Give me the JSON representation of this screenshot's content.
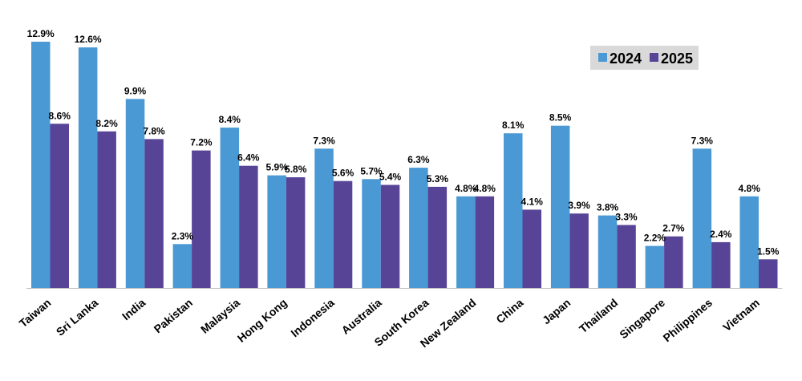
{
  "chart_data": {
    "type": "bar",
    "title": "",
    "xlabel": "",
    "ylabel": "",
    "categories": [
      "Taiwan",
      "Sri Lanka",
      "India",
      "Pakistan",
      "Malaysia",
      "Hong Kong",
      "Indonesia",
      "Australia",
      "South Korea",
      "New Zealand",
      "China",
      "Japan",
      "Thailand",
      "Singapore",
      "Philippines",
      "Vietnam"
    ],
    "series": [
      {
        "name": "2024",
        "color": "#4a98d4",
        "values": [
          12.9,
          12.6,
          9.9,
          2.3,
          8.4,
          5.9,
          7.3,
          5.7,
          6.3,
          4.8,
          8.1,
          8.5,
          3.8,
          2.2,
          7.3,
          4.8
        ],
        "labels": [
          "12.9%",
          "12.6%",
          "9.9%",
          "2.3%",
          "8.4%",
          "5.9%",
          "7.3%",
          "5.7%",
          "6.3%",
          "4.8%",
          "8.1%",
          "8.5%",
          "3.8%",
          "2.2%",
          "7.3%",
          "4.8%"
        ]
      },
      {
        "name": "2025",
        "color": "#574497",
        "values": [
          8.6,
          8.2,
          7.8,
          7.2,
          6.4,
          5.8,
          5.6,
          5.4,
          5.3,
          4.8,
          4.1,
          3.9,
          3.3,
          2.7,
          2.4,
          1.5
        ],
        "labels": [
          "8.6%",
          "8.2%",
          "7.8%",
          "7.2%",
          "6.4%",
          "5.8%",
          "5.6%",
          "5.4%",
          "5.3%",
          "4.8%",
          "4.1%",
          "3.9%",
          "3.3%",
          "2.7%",
          "2.4%",
          "1.5%"
        ]
      }
    ],
    "ylim": [
      0,
      14
    ],
    "grid": false,
    "legend_position": "top-right",
    "legend_background": "#d9d9d9",
    "baseline_color": "#bfbfbf"
  }
}
